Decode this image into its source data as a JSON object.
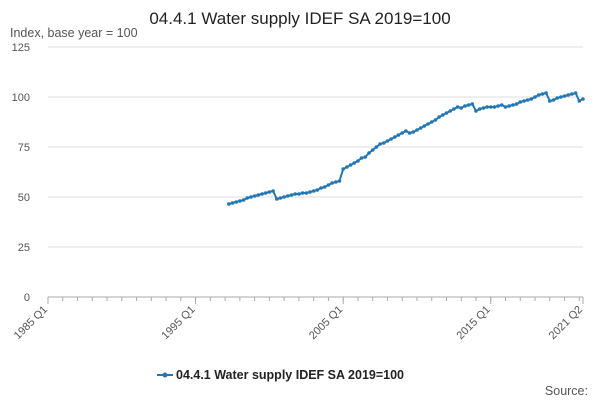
{
  "colors": {
    "series": "#2277b4",
    "grid": "#dedede",
    "axis": "#aaaaaa"
  },
  "chart_data": {
    "type": "line",
    "title": "04.4.1 Water supply IDEF SA 2019=100",
    "ylabel": "Index, base year = 100",
    "xlabel": "",
    "ylim": [
      0,
      125
    ],
    "yticks": [
      0,
      25,
      50,
      75,
      100,
      125
    ],
    "xlim": [
      "1985 Q1",
      "2021 Q2"
    ],
    "xticks": [
      "1985 Q1",
      "1995 Q1",
      "2005 Q1",
      "2015 Q1",
      "2021 Q2"
    ],
    "grid": "horizontal",
    "legend_position": "bottom",
    "source_label": "Source:",
    "series": [
      {
        "name": "04.4.1 Water supply IDEF SA 2019=100",
        "x": [
          "1997 Q2",
          "1997 Q3",
          "1997 Q4",
          "1998 Q1",
          "1998 Q2",
          "1998 Q3",
          "1998 Q4",
          "1999 Q1",
          "1999 Q2",
          "1999 Q3",
          "1999 Q4",
          "2000 Q1",
          "2000 Q2",
          "2000 Q3",
          "2000 Q4",
          "2001 Q1",
          "2001 Q2",
          "2001 Q3",
          "2001 Q4",
          "2002 Q1",
          "2002 Q2",
          "2002 Q3",
          "2002 Q4",
          "2003 Q1",
          "2003 Q2",
          "2003 Q3",
          "2003 Q4",
          "2004 Q1",
          "2004 Q2",
          "2004 Q3",
          "2004 Q4",
          "2005 Q1",
          "2005 Q2",
          "2005 Q3",
          "2005 Q4",
          "2006 Q1",
          "2006 Q2",
          "2006 Q3",
          "2006 Q4",
          "2007 Q1",
          "2007 Q2",
          "2007 Q3",
          "2007 Q4",
          "2008 Q1",
          "2008 Q2",
          "2008 Q3",
          "2008 Q4",
          "2009 Q1",
          "2009 Q2",
          "2009 Q3",
          "2009 Q4",
          "2010 Q1",
          "2010 Q2",
          "2010 Q3",
          "2010 Q4",
          "2011 Q1",
          "2011 Q2",
          "2011 Q3",
          "2011 Q4",
          "2012 Q1",
          "2012 Q2",
          "2012 Q3",
          "2012 Q4",
          "2013 Q1",
          "2013 Q2",
          "2013 Q3",
          "2013 Q4",
          "2014 Q1",
          "2014 Q2",
          "2014 Q3",
          "2014 Q4",
          "2015 Q1",
          "2015 Q2",
          "2015 Q3",
          "2015 Q4",
          "2016 Q1",
          "2016 Q2",
          "2016 Q3",
          "2016 Q4",
          "2017 Q1",
          "2017 Q2",
          "2017 Q3",
          "2017 Q4",
          "2018 Q1",
          "2018 Q2",
          "2018 Q3",
          "2018 Q4",
          "2019 Q1",
          "2019 Q2",
          "2019 Q3",
          "2019 Q4",
          "2020 Q1",
          "2020 Q2",
          "2020 Q3",
          "2020 Q4",
          "2021 Q1",
          "2021 Q2"
        ],
        "values": [
          46.5,
          47,
          47.5,
          48,
          48.5,
          49.5,
          50,
          50.5,
          51,
          51.5,
          52,
          52.5,
          53,
          49,
          49.5,
          50,
          50.5,
          51,
          51.5,
          51.5,
          52,
          52,
          52.5,
          53,
          53.5,
          54.5,
          55,
          56,
          57,
          57.5,
          58,
          64,
          65,
          66,
          67,
          68,
          69.5,
          70,
          72,
          73.5,
          75,
          76.5,
          77,
          78,
          79,
          80,
          81,
          82,
          83,
          82,
          82.5,
          83.5,
          84.5,
          85.5,
          86.5,
          87.5,
          88.5,
          90,
          91,
          92,
          93,
          94,
          95,
          94.5,
          95.5,
          96,
          96.5,
          93,
          94,
          94.5,
          95,
          95,
          95,
          95.5,
          96,
          95,
          95.5,
          96,
          96.5,
          97.5,
          98,
          98.5,
          99,
          100,
          101,
          101.5,
          102,
          98,
          98.5,
          99.5,
          100,
          100.5,
          101,
          101.5,
          102,
          98,
          99
        ]
      }
    ]
  }
}
